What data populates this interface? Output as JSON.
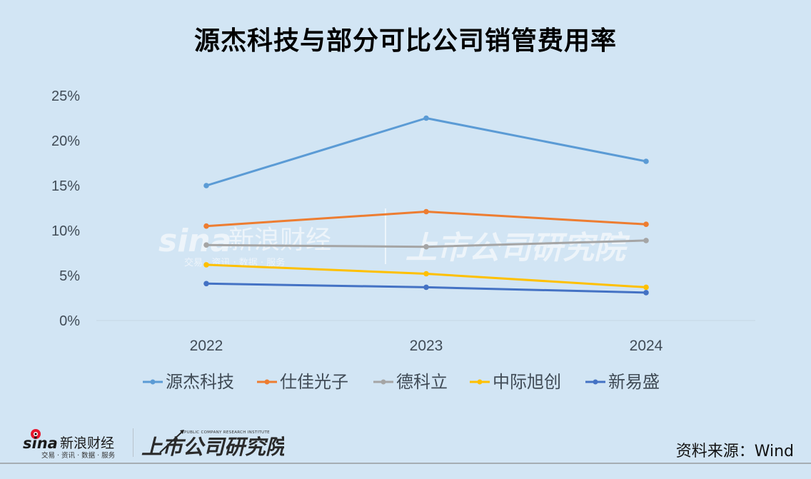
{
  "title": "源杰科技与部分可比公司销管费用率",
  "source": "资料来源：Wind",
  "logos": {
    "sina_brand": "sina",
    "sina_name": "新浪财经",
    "sina_tagline": "交易 · 资讯 · 数据 · 服务",
    "institute_name": "上市公司研究院",
    "institute_en": "PUBLIC COMPANY RESEARCH INSTITUTE"
  },
  "colors": {
    "background": "#d2e5f4",
    "源杰科技": "#5b9bd5",
    "仕佳光子": "#ed7d31",
    "德科立": "#a5a5a5",
    "中际旭创": "#ffc000",
    "新易盛": "#4472c4"
  },
  "chart_data": {
    "type": "line",
    "title": "源杰科技与部分可比公司销管费用率",
    "xlabel": "",
    "ylabel": "",
    "categories": [
      "2022",
      "2023",
      "2024"
    ],
    "yticks": [
      "0%",
      "5%",
      "10%",
      "15%",
      "20%",
      "25%"
    ],
    "ylim": [
      0,
      25
    ],
    "grid": false,
    "legend_position": "bottom",
    "series": [
      {
        "name": "源杰科技",
        "color": "#5b9bd5",
        "values": [
          15.0,
          22.5,
          17.7
        ]
      },
      {
        "name": "仕佳光子",
        "color": "#ed7d31",
        "values": [
          10.5,
          12.1,
          10.7
        ]
      },
      {
        "name": "德科立",
        "color": "#a5a5a5",
        "values": [
          8.4,
          8.2,
          8.9
        ]
      },
      {
        "name": "中际旭创",
        "color": "#ffc000",
        "values": [
          6.2,
          5.2,
          3.7
        ]
      },
      {
        "name": "新易盛",
        "color": "#4472c4",
        "values": [
          4.1,
          3.7,
          3.1
        ]
      }
    ],
    "annotations": [
      "资料来源：Wind"
    ]
  }
}
